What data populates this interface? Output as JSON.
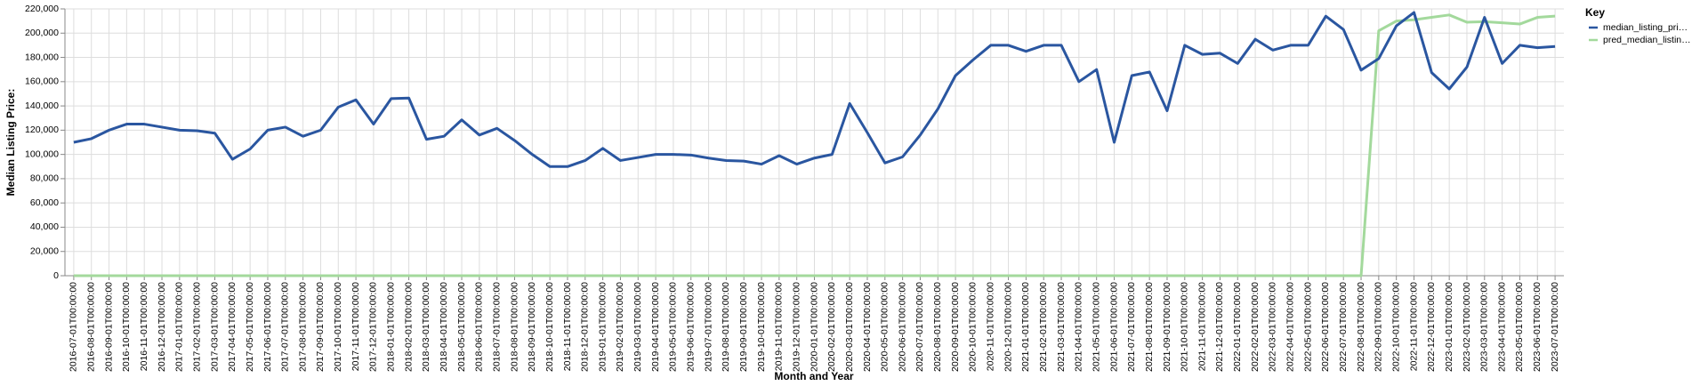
{
  "chart_data": {
    "type": "line",
    "x_label": "Month and Year",
    "y_label": "Median Listing Price:",
    "legend_title": "Key",
    "legend_position": "right",
    "grid": true,
    "categories": [
      "2016-07-01T00:00:00",
      "2016-08-01T00:00:00",
      "2016-09-01T00:00:00",
      "2016-10-01T00:00:00",
      "2016-11-01T00:00:00",
      "2016-12-01T00:00:00",
      "2017-01-01T00:00:00",
      "2017-02-01T00:00:00",
      "2017-03-01T00:00:00",
      "2017-04-01T00:00:00",
      "2017-05-01T00:00:00",
      "2017-06-01T00:00:00",
      "2017-07-01T00:00:00",
      "2017-08-01T00:00:00",
      "2017-09-01T00:00:00",
      "2017-10-01T00:00:00",
      "2017-11-01T00:00:00",
      "2017-12-01T00:00:00",
      "2018-01-01T00:00:00",
      "2018-02-01T00:00:00",
      "2018-03-01T00:00:00",
      "2018-04-01T00:00:00",
      "2018-05-01T00:00:00",
      "2018-06-01T00:00:00",
      "2018-07-01T00:00:00",
      "2018-08-01T00:00:00",
      "2018-09-01T00:00:00",
      "2018-10-01T00:00:00",
      "2018-11-01T00:00:00",
      "2018-12-01T00:00:00",
      "2019-01-01T00:00:00",
      "2019-02-01T00:00:00",
      "2019-03-01T00:00:00",
      "2019-04-01T00:00:00",
      "2019-05-01T00:00:00",
      "2019-06-01T00:00:00",
      "2019-07-01T00:00:00",
      "2019-08-01T00:00:00",
      "2019-09-01T00:00:00",
      "2019-10-01T00:00:00",
      "2019-11-01T00:00:00",
      "2019-12-01T00:00:00",
      "2020-01-01T00:00:00",
      "2020-02-01T00:00:00",
      "2020-03-01T00:00:00",
      "2020-04-01T00:00:00",
      "2020-05-01T00:00:00",
      "2020-06-01T00:00:00",
      "2020-07-01T00:00:00",
      "2020-08-01T00:00:00",
      "2020-09-01T00:00:00",
      "2020-10-01T00:00:00",
      "2020-11-01T00:00:00",
      "2020-12-01T00:00:00",
      "2021-01-01T00:00:00",
      "2021-02-01T00:00:00",
      "2021-03-01T00:00:00",
      "2021-04-01T00:00:00",
      "2021-05-01T00:00:00",
      "2021-06-01T00:00:00",
      "2021-07-01T00:00:00",
      "2021-08-01T00:00:00",
      "2021-09-01T00:00:00",
      "2021-10-01T00:00:00",
      "2021-11-01T00:00:00",
      "2021-12-01T00:00:00",
      "2022-01-01T00:00:00",
      "2022-02-01T00:00:00",
      "2022-03-01T00:00:00",
      "2022-04-01T00:00:00",
      "2022-05-01T00:00:00",
      "2022-06-01T00:00:00",
      "2022-07-01T00:00:00",
      "2022-08-01T00:00:00",
      "2022-09-01T00:00:00",
      "2022-10-01T00:00:00",
      "2022-11-01T00:00:00",
      "2022-12-01T00:00:00",
      "2023-01-01T00:00:00",
      "2023-02-01T00:00:00",
      "2023-03-01T00:00:00",
      "2023-04-01T00:00:00",
      "2023-05-01T00:00:00",
      "2023-06-01T00:00:00",
      "2023-07-01T00:00:00"
    ],
    "series": [
      {
        "name": "median_listing_pri…",
        "color": "#2a56a0",
        "values": [
          110000,
          113000,
          120000,
          125000,
          125000,
          122500,
          120000,
          119500,
          117500,
          96000,
          104500,
          120000,
          122500,
          115000,
          120000,
          139000,
          145000,
          125000,
          146000,
          146500,
          112500,
          115000,
          128500,
          116000,
          121500,
          111500,
          100000,
          90000,
          90000,
          95000,
          105000,
          95000,
          97500,
          100000,
          100000,
          99500,
          97000,
          95000,
          94500,
          92000,
          99000,
          92000,
          97000,
          100000,
          142000,
          118000,
          93000,
          98000,
          116000,
          137500,
          165000,
          178000,
          190000,
          190000,
          185000,
          190000,
          190000,
          160000,
          170000,
          110000,
          165000,
          168000,
          136000,
          190000,
          182500,
          183500,
          175000,
          195000,
          186000,
          190000,
          190000,
          214000,
          203000,
          169500,
          179000,
          206000,
          217000,
          167500,
          154000,
          172000,
          213000,
          175000,
          190000,
          188000,
          189000
        ]
      },
      {
        "name": "pred_median_listin…",
        "color": "#a3d99c",
        "values": [
          0,
          0,
          0,
          0,
          0,
          0,
          0,
          0,
          0,
          0,
          0,
          0,
          0,
          0,
          0,
          0,
          0,
          0,
          0,
          0,
          0,
          0,
          0,
          0,
          0,
          0,
          0,
          0,
          0,
          0,
          0,
          0,
          0,
          0,
          0,
          0,
          0,
          0,
          0,
          0,
          0,
          0,
          0,
          0,
          0,
          0,
          0,
          0,
          0,
          0,
          0,
          0,
          0,
          0,
          0,
          0,
          0,
          0,
          0,
          0,
          0,
          0,
          0,
          0,
          0,
          0,
          0,
          0,
          0,
          0,
          0,
          0,
          0,
          0,
          202000,
          210000,
          211000,
          213000,
          215000,
          209000,
          209500,
          208500,
          207500,
          213000,
          214000
        ]
      }
    ],
    "ylim": [
      0,
      220000
    ],
    "yticks": [
      {
        "value": 0,
        "label": "0"
      },
      {
        "value": 20000,
        "label": "20,000"
      },
      {
        "value": 40000,
        "label": "40,000"
      },
      {
        "value": 60000,
        "label": "60,000"
      },
      {
        "value": 80000,
        "label": "80,000"
      },
      {
        "value": 100000,
        "label": "100,000"
      },
      {
        "value": 120000,
        "label": "120,000"
      },
      {
        "value": 140000,
        "label": "140,000"
      },
      {
        "value": 160000,
        "label": "160,000"
      },
      {
        "value": 180000,
        "label": "180,000"
      },
      {
        "value": 200000,
        "label": "200,000"
      },
      {
        "value": 220000,
        "label": "220,000"
      }
    ]
  }
}
